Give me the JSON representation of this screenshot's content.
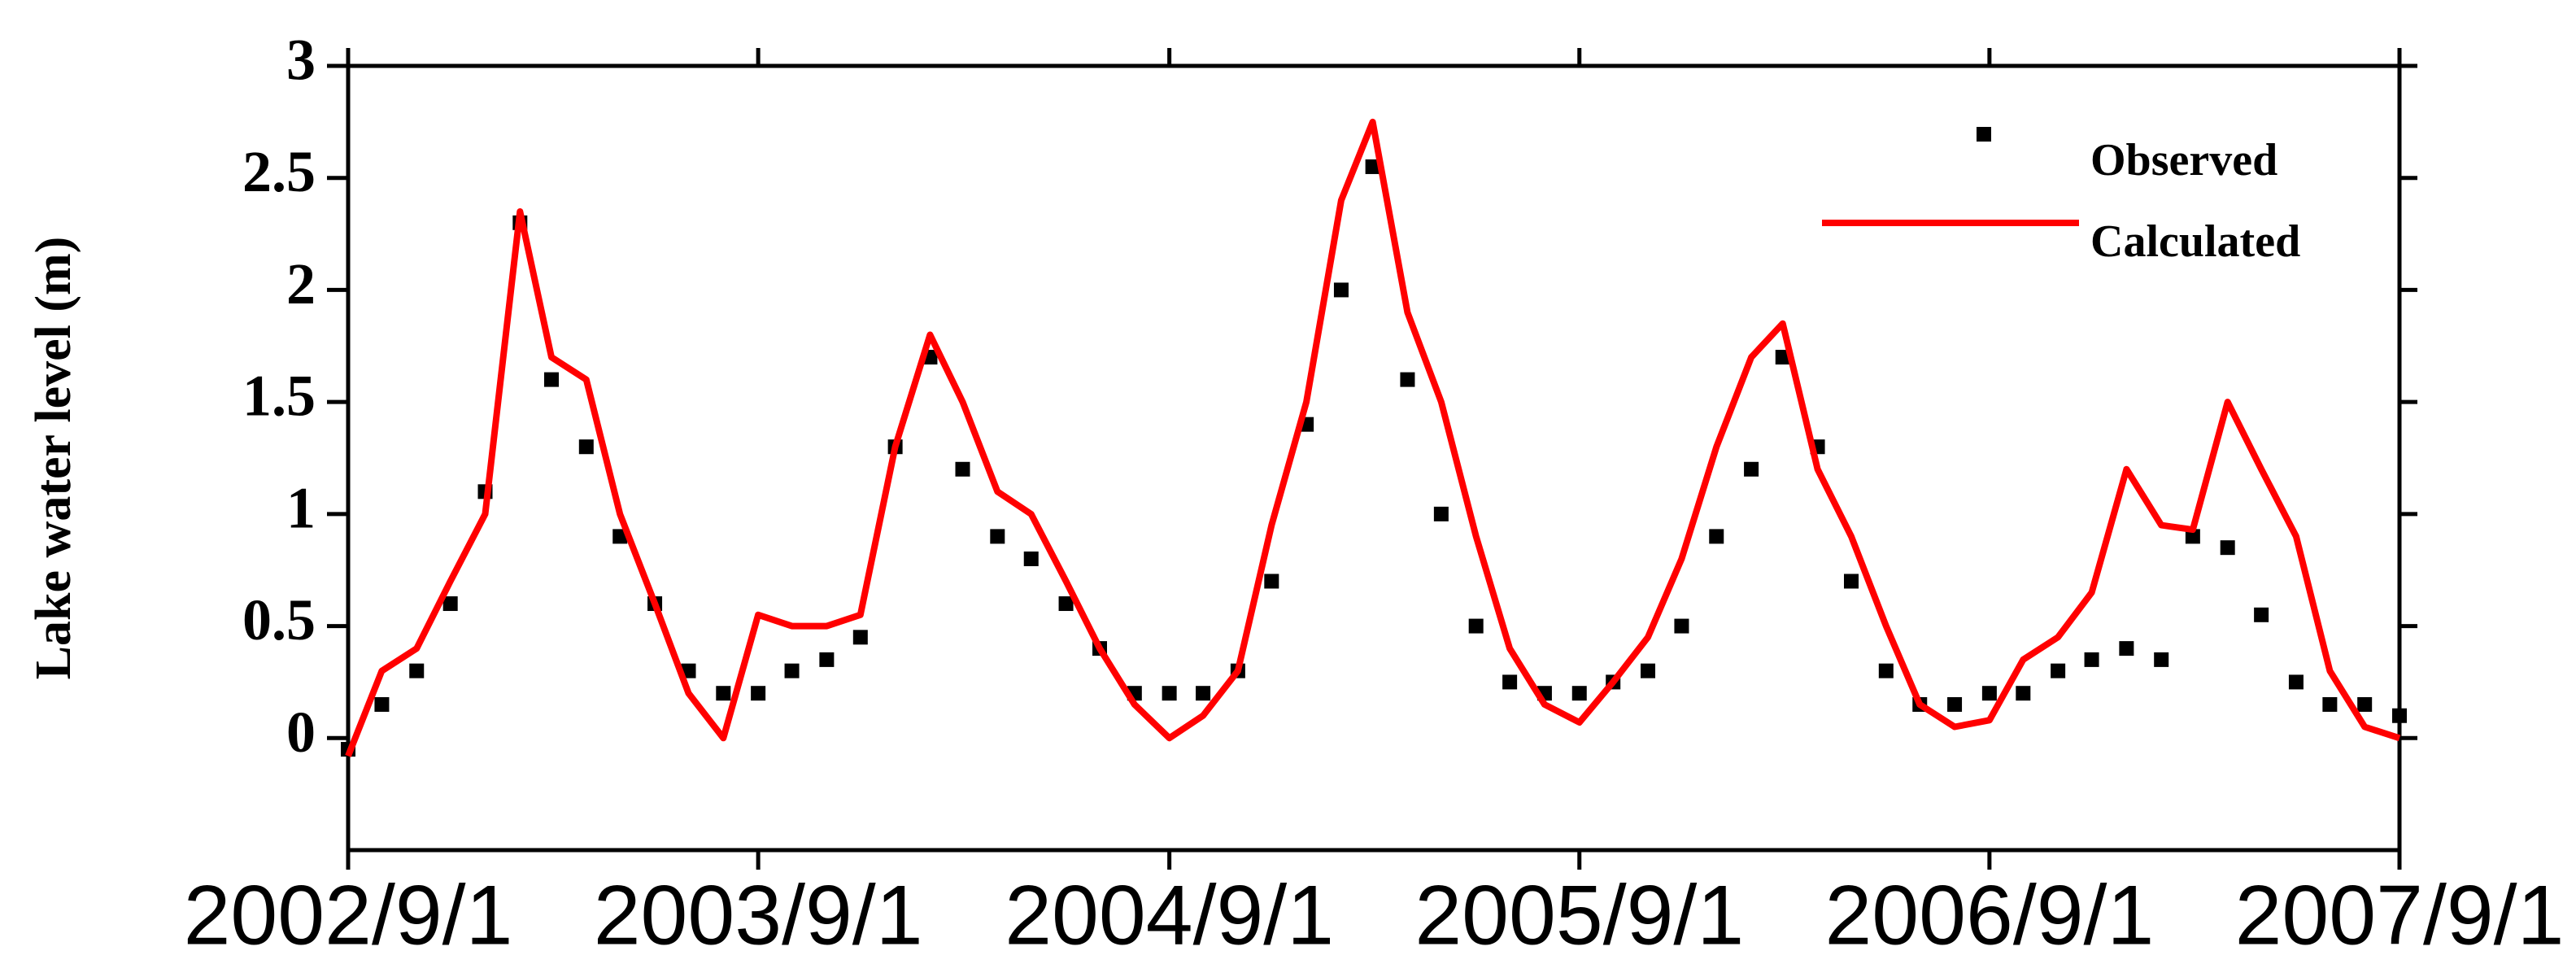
{
  "chart_data": {
    "type": "line",
    "y_label": "Lake water level (m)",
    "x": [
      "2002/9/1",
      "2002/10/1",
      "2002/11/1",
      "2002/12/1",
      "2003/1/1",
      "2003/2/1",
      "2003/3/1",
      "2003/4/1",
      "2003/5/1",
      "2003/6/1",
      "2003/7/1",
      "2003/8/1",
      "2003/9/1",
      "2003/10/1",
      "2003/11/1",
      "2003/12/1",
      "2004/1/1",
      "2004/2/1",
      "2004/3/1",
      "2004/4/1",
      "2004/5/1",
      "2004/6/1",
      "2004/7/1",
      "2004/8/1",
      "2004/9/1",
      "2004/10/1",
      "2004/11/1",
      "2004/12/1",
      "2005/1/1",
      "2005/2/1",
      "2005/3/1",
      "2005/4/1",
      "2005/5/1",
      "2005/6/1",
      "2005/7/1",
      "2005/8/1",
      "2005/9/1",
      "2005/10/1",
      "2005/11/1",
      "2005/12/1",
      "2006/1/1",
      "2006/2/1",
      "2006/3/1",
      "2006/4/1",
      "2006/5/1",
      "2006/6/1",
      "2006/7/1",
      "2006/8/1",
      "2006/9/1",
      "2006/10/1",
      "2006/11/1",
      "2006/12/1",
      "2007/1/1",
      "2007/2/1",
      "2007/3/1",
      "2007/4/1",
      "2007/5/1",
      "2007/6/1",
      "2007/7/1",
      "2007/8/1",
      "2007/9/1"
    ],
    "series": [
      {
        "name": "Observed",
        "color": "#000000",
        "style": "markers",
        "values": [
          -0.05,
          0.15,
          0.3,
          0.6,
          1.1,
          2.3,
          1.6,
          1.3,
          0.9,
          0.6,
          0.3,
          0.2,
          0.2,
          0.3,
          0.35,
          0.45,
          1.3,
          1.7,
          1.2,
          0.9,
          0.8,
          0.6,
          0.4,
          0.2,
          0.2,
          0.2,
          0.3,
          0.7,
          1.4,
          2.0,
          2.55,
          1.6,
          1.0,
          0.5,
          0.25,
          0.2,
          0.2,
          0.25,
          0.3,
          0.5,
          0.9,
          1.2,
          1.7,
          1.3,
          0.7,
          0.3,
          0.15,
          0.15,
          0.2,
          0.2,
          0.3,
          0.35,
          0.4,
          0.35,
          0.9,
          0.85,
          0.55,
          0.25,
          0.15,
          0.15,
          0.1
        ]
      },
      {
        "name": "Calculated",
        "color": "#ff0000",
        "style": "line",
        "values": [
          -0.08,
          0.3,
          0.4,
          0.7,
          1.0,
          2.35,
          1.7,
          1.6,
          1.0,
          0.6,
          0.2,
          0.0,
          0.55,
          0.5,
          0.5,
          0.55,
          1.3,
          1.8,
          1.5,
          1.1,
          1.0,
          0.7,
          0.4,
          0.15,
          0.0,
          0.1,
          0.3,
          0.95,
          1.5,
          2.4,
          2.75,
          1.9,
          1.5,
          0.9,
          0.4,
          0.15,
          0.07,
          0.25,
          0.45,
          0.8,
          1.3,
          1.7,
          1.85,
          1.2,
          0.9,
          0.5,
          0.15,
          0.05,
          0.08,
          0.35,
          0.45,
          0.65,
          1.2,
          0.95,
          0.93,
          1.5,
          1.2,
          0.9,
          0.3,
          0.05,
          0.0
        ]
      }
    ],
    "xlim": [
      "2002/9/1",
      "2007/9/1"
    ],
    "xticks": [
      "2002/9/1",
      "2003/9/1",
      "2004/9/1",
      "2005/9/1",
      "2006/9/1",
      "2007/9/1"
    ],
    "ylim": [
      -0.5,
      3
    ],
    "yticks": [
      0,
      0.5,
      1,
      1.5,
      2,
      2.5,
      3
    ],
    "legend": "upper right"
  }
}
